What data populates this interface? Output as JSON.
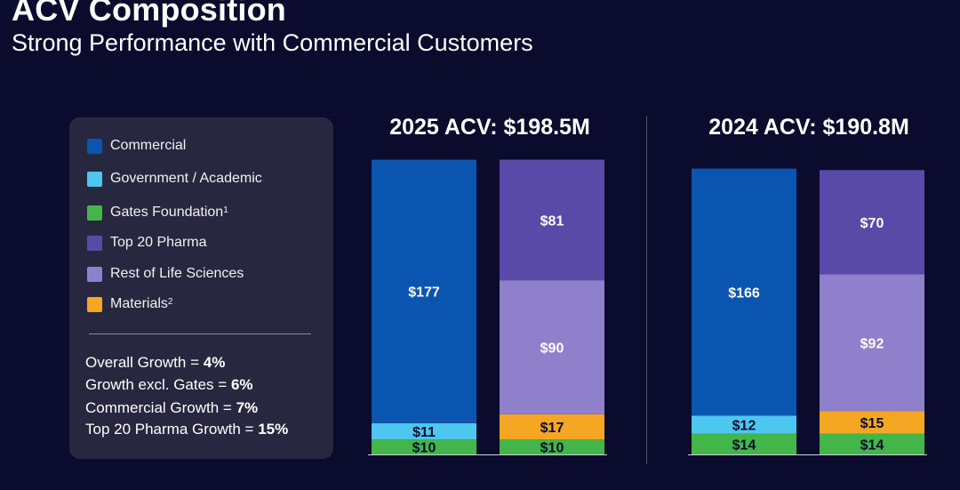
{
  "header": {
    "title": "ACV Composition",
    "subtitle": "Strong Performance with Commercial Customers"
  },
  "legend": {
    "items": [
      {
        "label": "Commercial",
        "sup": "",
        "color": "#0a55b0"
      },
      {
        "label": "Government / Academic",
        "sup": "",
        "color": "#4dc6f0"
      },
      {
        "label": "Gates Foundation",
        "sup": "1",
        "color": "#43b649"
      },
      {
        "label": "Top 20 Pharma",
        "sup": "",
        "color": "#5a4aa8"
      },
      {
        "label": "Rest of Life Sciences",
        "sup": "",
        "color": "#8f80cc"
      },
      {
        "label": "Materials",
        "sup": "2",
        "color": "#f5a623"
      }
    ]
  },
  "growth_stats": [
    {
      "label": "Overall Growth = ",
      "value": "4%"
    },
    {
      "label": "Growth excl. Gates = ",
      "value": "6%"
    },
    {
      "label": "Commercial Growth = ",
      "value": "7%"
    },
    {
      "label": "Top 20 Pharma Growth = ",
      "value": "15%"
    }
  ],
  "chart_data": [
    {
      "type": "bar",
      "stacked": true,
      "title": "2025 ACV: $198.5M",
      "unit": "$M",
      "bars": [
        {
          "name": "left",
          "segments": [
            {
              "category": "Gates Foundation",
              "value": 10,
              "label": "$10"
            },
            {
              "category": "Government / Academic",
              "value": 11,
              "label": "$11"
            },
            {
              "category": "Commercial",
              "value": 177,
              "label": "$177"
            }
          ]
        },
        {
          "name": "right",
          "segments": [
            {
              "category": "Gates Foundation",
              "value": 10,
              "label": "$10"
            },
            {
              "category": "Materials",
              "value": 17,
              "label": "$17"
            },
            {
              "category": "Rest of Life Sciences",
              "value": 90,
              "label": "$90"
            },
            {
              "category": "Top 20 Pharma",
              "value": 81,
              "label": "$81"
            }
          ]
        }
      ]
    },
    {
      "type": "bar",
      "stacked": true,
      "title": "2024 ACV: $190.8M",
      "unit": "$M",
      "bars": [
        {
          "name": "left",
          "segments": [
            {
              "category": "Gates Foundation",
              "value": 14,
              "label": "$14"
            },
            {
              "category": "Government / Academic",
              "value": 12,
              "label": "$12"
            },
            {
              "category": "Commercial",
              "value": 166,
              "label": "$166"
            }
          ]
        },
        {
          "name": "right",
          "segments": [
            {
              "category": "Gates Foundation",
              "value": 14,
              "label": "$14"
            },
            {
              "category": "Materials",
              "value": 15,
              "label": "$15"
            },
            {
              "category": "Rest of Life Sciences",
              "value": 92,
              "label": "$92"
            },
            {
              "category": "Top 20 Pharma",
              "value": 70,
              "label": "$70"
            }
          ]
        }
      ]
    }
  ]
}
